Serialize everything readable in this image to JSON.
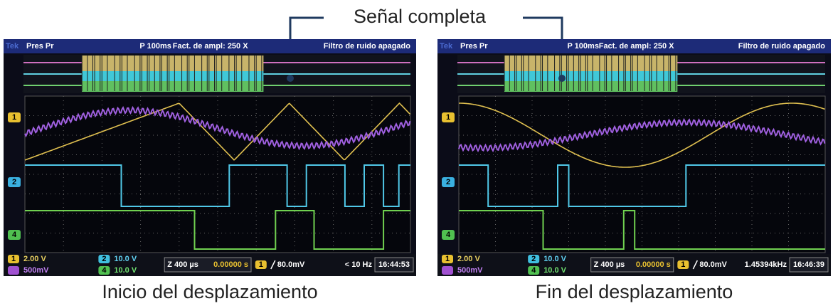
{
  "title": "Señal completa",
  "scopes": [
    {
      "caption": "Inicio del desplazamiento",
      "header": {
        "brand": "Tek",
        "mode": "Pres Pr",
        "period": "P 100ms",
        "zoom": "Fact. de ampl: 250 X",
        "filter": "Filtro de ruido apagado"
      },
      "markers": [
        "1",
        "2",
        "4"
      ],
      "status": {
        "ch1_num": "1",
        "ch1": "2.00 V",
        "ch3": "500mV",
        "ch2_num": "2",
        "ch2": "10.0 V",
        "ch4_num": "4",
        "ch4": "10.0 V",
        "zoom": "Z 400 µs",
        "position": "0.00000 s",
        "trig_num": "1",
        "trigger": "80.0mV",
        "freq": "< 10 Hz",
        "time": "16:44:53"
      }
    },
    {
      "caption": "Fin del desplazamiento",
      "header": {
        "brand": "Tek",
        "mode": "Pres Pr",
        "period": "P 100ms",
        "zoom": "Fact. de ampl: 250 X",
        "filter": "Filtro de ruido apagado"
      },
      "markers": [
        "1",
        "2",
        "4"
      ],
      "status": {
        "ch1_num": "1",
        "ch1": "2.00 V",
        "ch3": "500mV",
        "ch2_num": "2",
        "ch2": "10.0 V",
        "ch4_num": "4",
        "ch4": "10.0 V",
        "zoom": "Z 400 µs",
        "position": "0.00000 s",
        "trig_num": "1",
        "trigger": "80.0mV",
        "freq": "1.45394kHz",
        "time": "16:46:39"
      }
    }
  ]
}
